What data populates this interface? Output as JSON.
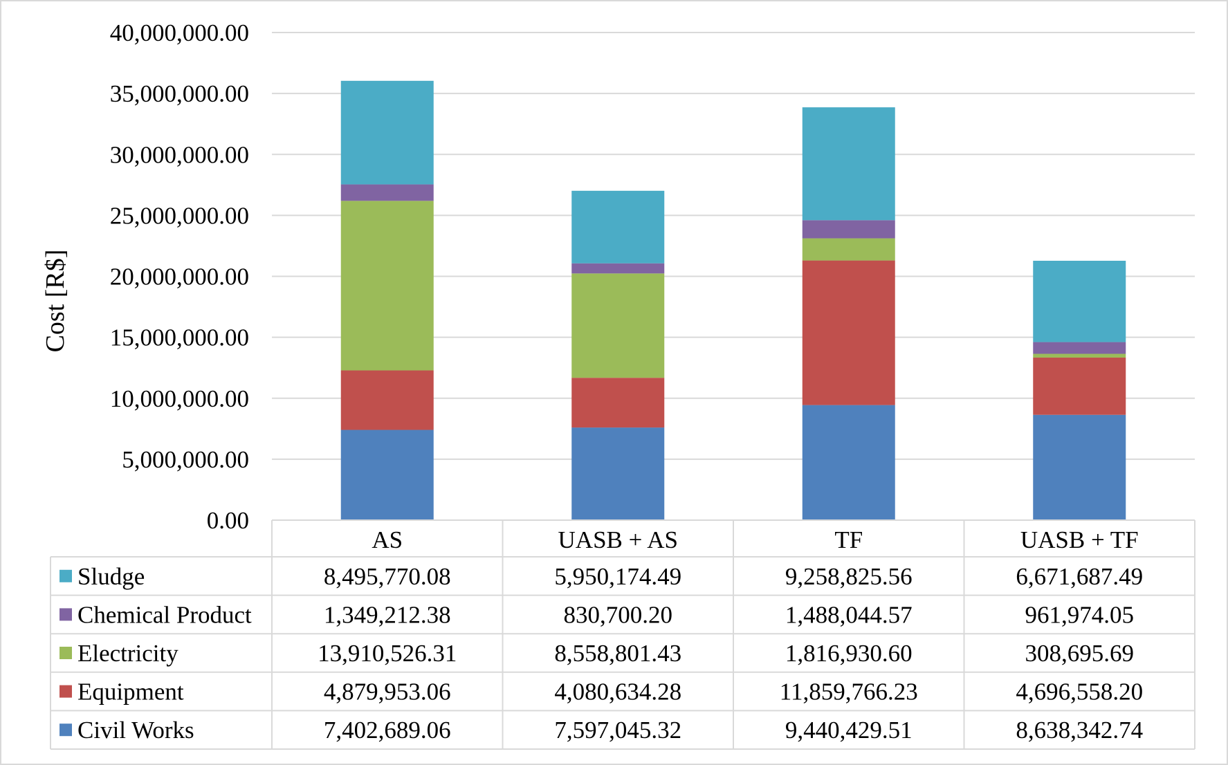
{
  "chart_data": {
    "type": "bar",
    "stacked": true,
    "title": "",
    "xlabel": "",
    "ylabel": "Cost [R$]",
    "ylim": [
      0,
      40000000
    ],
    "yticks": [
      0,
      5000000,
      10000000,
      15000000,
      20000000,
      25000000,
      30000000,
      35000000,
      40000000
    ],
    "ytick_labels": [
      "0.00",
      "5,000,000.00",
      "10,000,000.00",
      "15,000,000.00",
      "20,000,000.00",
      "25,000,000.00",
      "30,000,000.00",
      "35,000,000.00",
      "40,000,000.00"
    ],
    "grid": true,
    "legend_position": "data table, left column",
    "categories": [
      "AS",
      "UASB + AS",
      "TF",
      "UASB + TF"
    ],
    "series": [
      {
        "name": "Civil Works",
        "color": "#4f81bd",
        "values": [
          7402689.06,
          7597045.32,
          9440429.51,
          8638342.74
        ],
        "labels": [
          "7,402,689.06",
          "7,597,045.32",
          "9,440,429.51",
          "8,638,342.74"
        ]
      },
      {
        "name": "Equipment",
        "color": "#c0504d",
        "values": [
          4879953.06,
          4080634.28,
          11859766.23,
          4696558.2
        ],
        "labels": [
          "4,879,953.06",
          "4,080,634.28",
          "11,859,766.23",
          "4,696,558.20"
        ]
      },
      {
        "name": "Electricity",
        "color": "#9bbb59",
        "values": [
          13910526.31,
          8558801.43,
          1816930.6,
          308695.69
        ],
        "labels": [
          "13,910,526.31",
          "8,558,801.43",
          "1,816,930.60",
          "308,695.69"
        ]
      },
      {
        "name": "Chemical Product",
        "color": "#8064a2",
        "values": [
          1349212.38,
          830700.2,
          1488044.57,
          961974.05
        ],
        "labels": [
          "1,349,212.38",
          "830,700.20",
          "1,488,044.57",
          "961,974.05"
        ]
      },
      {
        "name": "Sludge",
        "color": "#4bacc6",
        "values": [
          8495770.08,
          5950174.49,
          9258825.56,
          6671687.49
        ],
        "labels": [
          "8,495,770.08",
          "5,950,174.49",
          "9,258,825.56",
          "6,671,687.49"
        ]
      }
    ],
    "table_row_order": [
      "Sludge",
      "Chemical Product",
      "Electricity",
      "Equipment",
      "Civil Works"
    ]
  }
}
